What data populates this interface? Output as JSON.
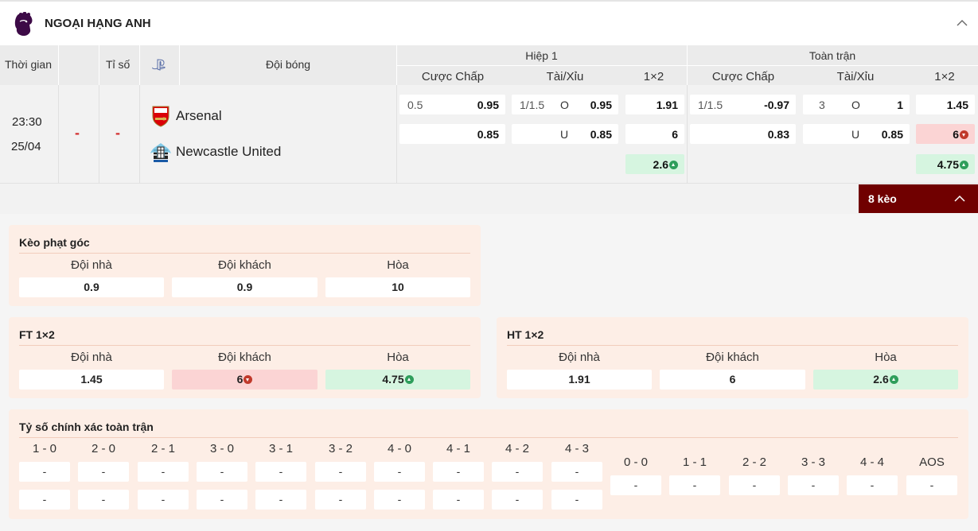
{
  "league": {
    "name": "NGOẠI HẠNG ANH",
    "logo_icon": "premier-league-lion-icon"
  },
  "header": {
    "time": "Thời gian",
    "score": "Tỉ số",
    "live_icon": "playstation-icon",
    "team": "Đội bóng",
    "half1": "Hiệp 1",
    "full": "Toàn trận",
    "handicap": "Cược Chấp",
    "overunder": "Tài/Xỉu",
    "onextwo": "1×2"
  },
  "match": {
    "time": "23:30",
    "date": "25/04",
    "score_home": "-",
    "score_away": "-",
    "home": "Arsenal",
    "away": "Newcastle United",
    "home_crest_icon": "arsenal-crest-icon",
    "away_crest_icon": "newcastle-crest-icon",
    "h1": {
      "hdp_line": "0.5",
      "hdp_home": "0.95",
      "hdp_away": "0.85",
      "ou_line": "1/1.5",
      "ou_o": "O",
      "ou_over": "0.95",
      "ou_u": "U",
      "ou_under": "0.85",
      "x12_1": "1.91",
      "x12_2": "6",
      "x12_x": "2.6"
    },
    "ft": {
      "hdp_line": "1/1.5",
      "hdp_home": "-0.97",
      "hdp_away": "0.83",
      "ou_line": "3",
      "ou_o": "O",
      "ou_over": "1",
      "ou_u": "U",
      "ou_under": "0.85",
      "x12_1": "1.45",
      "x12_2": "6",
      "x12_x": "4.75"
    }
  },
  "more_button": "8 kèo",
  "corner": {
    "title": "Kèo phạt góc",
    "labels": [
      "Đội nhà",
      "Đội khách",
      "Hòa"
    ],
    "values": [
      "0.9",
      "0.9",
      "10"
    ]
  },
  "ft12": {
    "title": "FT 1×2",
    "labels": [
      "Đội nhà",
      "Đội khách",
      "Hòa"
    ],
    "values": [
      "1.45",
      "6",
      "4.75"
    ]
  },
  "ht12": {
    "title": "HT 1×2",
    "labels": [
      "Đội nhà",
      "Đội khách",
      "Hòa"
    ],
    "values": [
      "1.91",
      "6",
      "2.6"
    ]
  },
  "correct_score": {
    "title": "Tỷ số chính xác toàn trận",
    "left_labels": [
      "1 - 0",
      "2 - 0",
      "2 - 1",
      "3 - 0",
      "3 - 1",
      "3 - 2",
      "4 - 0",
      "4 - 1",
      "4 - 2",
      "4 - 3"
    ],
    "left_row1": [
      "-",
      "-",
      "-",
      "-",
      "-",
      "-",
      "-",
      "-",
      "-",
      "-"
    ],
    "left_row2": [
      "-",
      "-",
      "-",
      "-",
      "-",
      "-",
      "-",
      "-",
      "-",
      "-"
    ],
    "right_labels": [
      "0 - 0",
      "1 - 1",
      "2 - 2",
      "3 - 3",
      "4 - 4",
      "AOS"
    ],
    "right_row": [
      "-",
      "-",
      "-",
      "-",
      "-",
      "-"
    ]
  },
  "colors": {
    "accent": "#700000",
    "up": "#2e9e5b",
    "down": "#c0392b",
    "panel": "#fdeee6"
  }
}
